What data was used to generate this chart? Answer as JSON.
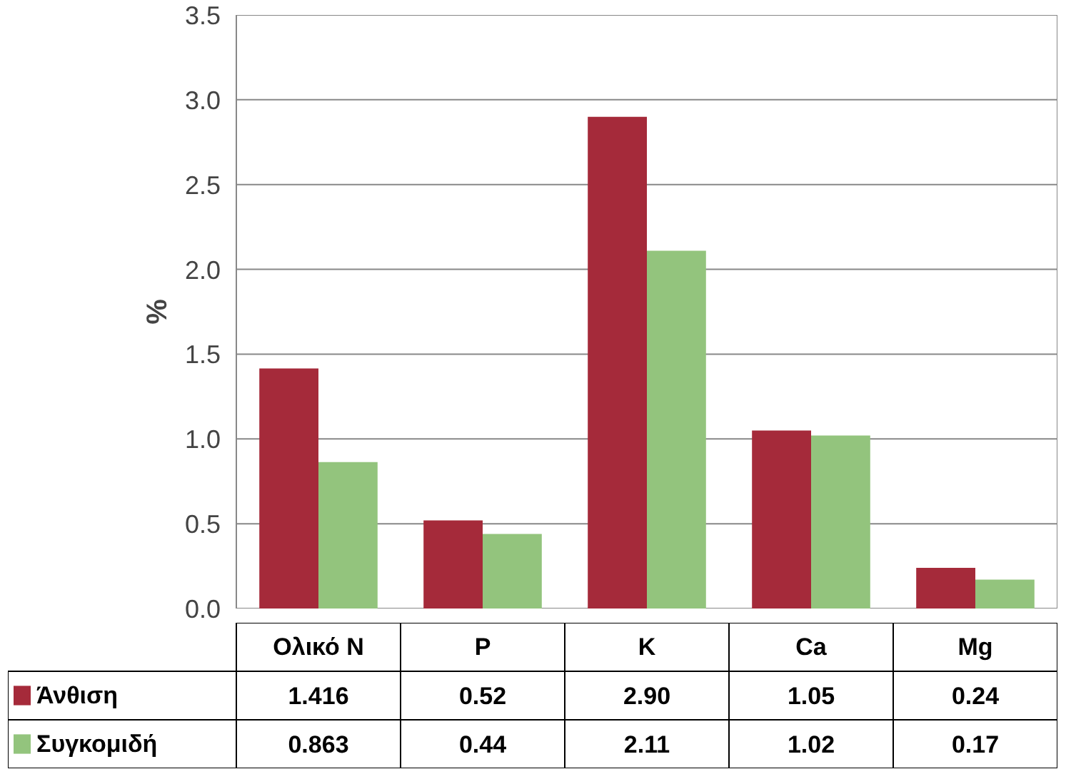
{
  "chart_data": {
    "type": "bar",
    "ylabel": "%",
    "categories": [
      "Ολικό N",
      "P",
      "K",
      "Ca",
      "Mg"
    ],
    "series": [
      {
        "name": "Άνθιση",
        "color": "#a52a3a",
        "values": [
          1.416,
          0.52,
          2.9,
          1.05,
          0.24
        ],
        "value_labels": [
          "1.416",
          "0.52",
          "2.90",
          "1.05",
          "0.24"
        ]
      },
      {
        "name": "Συγκομιδή",
        "color": "#93c47d",
        "values": [
          0.863,
          0.44,
          2.11,
          1.02,
          0.17
        ],
        "value_labels": [
          "0.863",
          "0.44",
          "2.11",
          "1.02",
          "0.17"
        ]
      }
    ],
    "ylim": [
      0,
      3.5
    ],
    "yticks": [
      {
        "value": 0,
        "label": "0.0"
      },
      {
        "value": 0.5,
        "label": "0.5"
      },
      {
        "value": 1,
        "label": "1.0"
      },
      {
        "value": 1.5,
        "label": "1.5"
      },
      {
        "value": 2,
        "label": "2.0"
      },
      {
        "value": 2.5,
        "label": "2.5"
      },
      {
        "value": 3,
        "label": "3.0"
      },
      {
        "value": 3.5,
        "label": "3.5"
      }
    ],
    "grid": "y",
    "legend": "bottom"
  }
}
